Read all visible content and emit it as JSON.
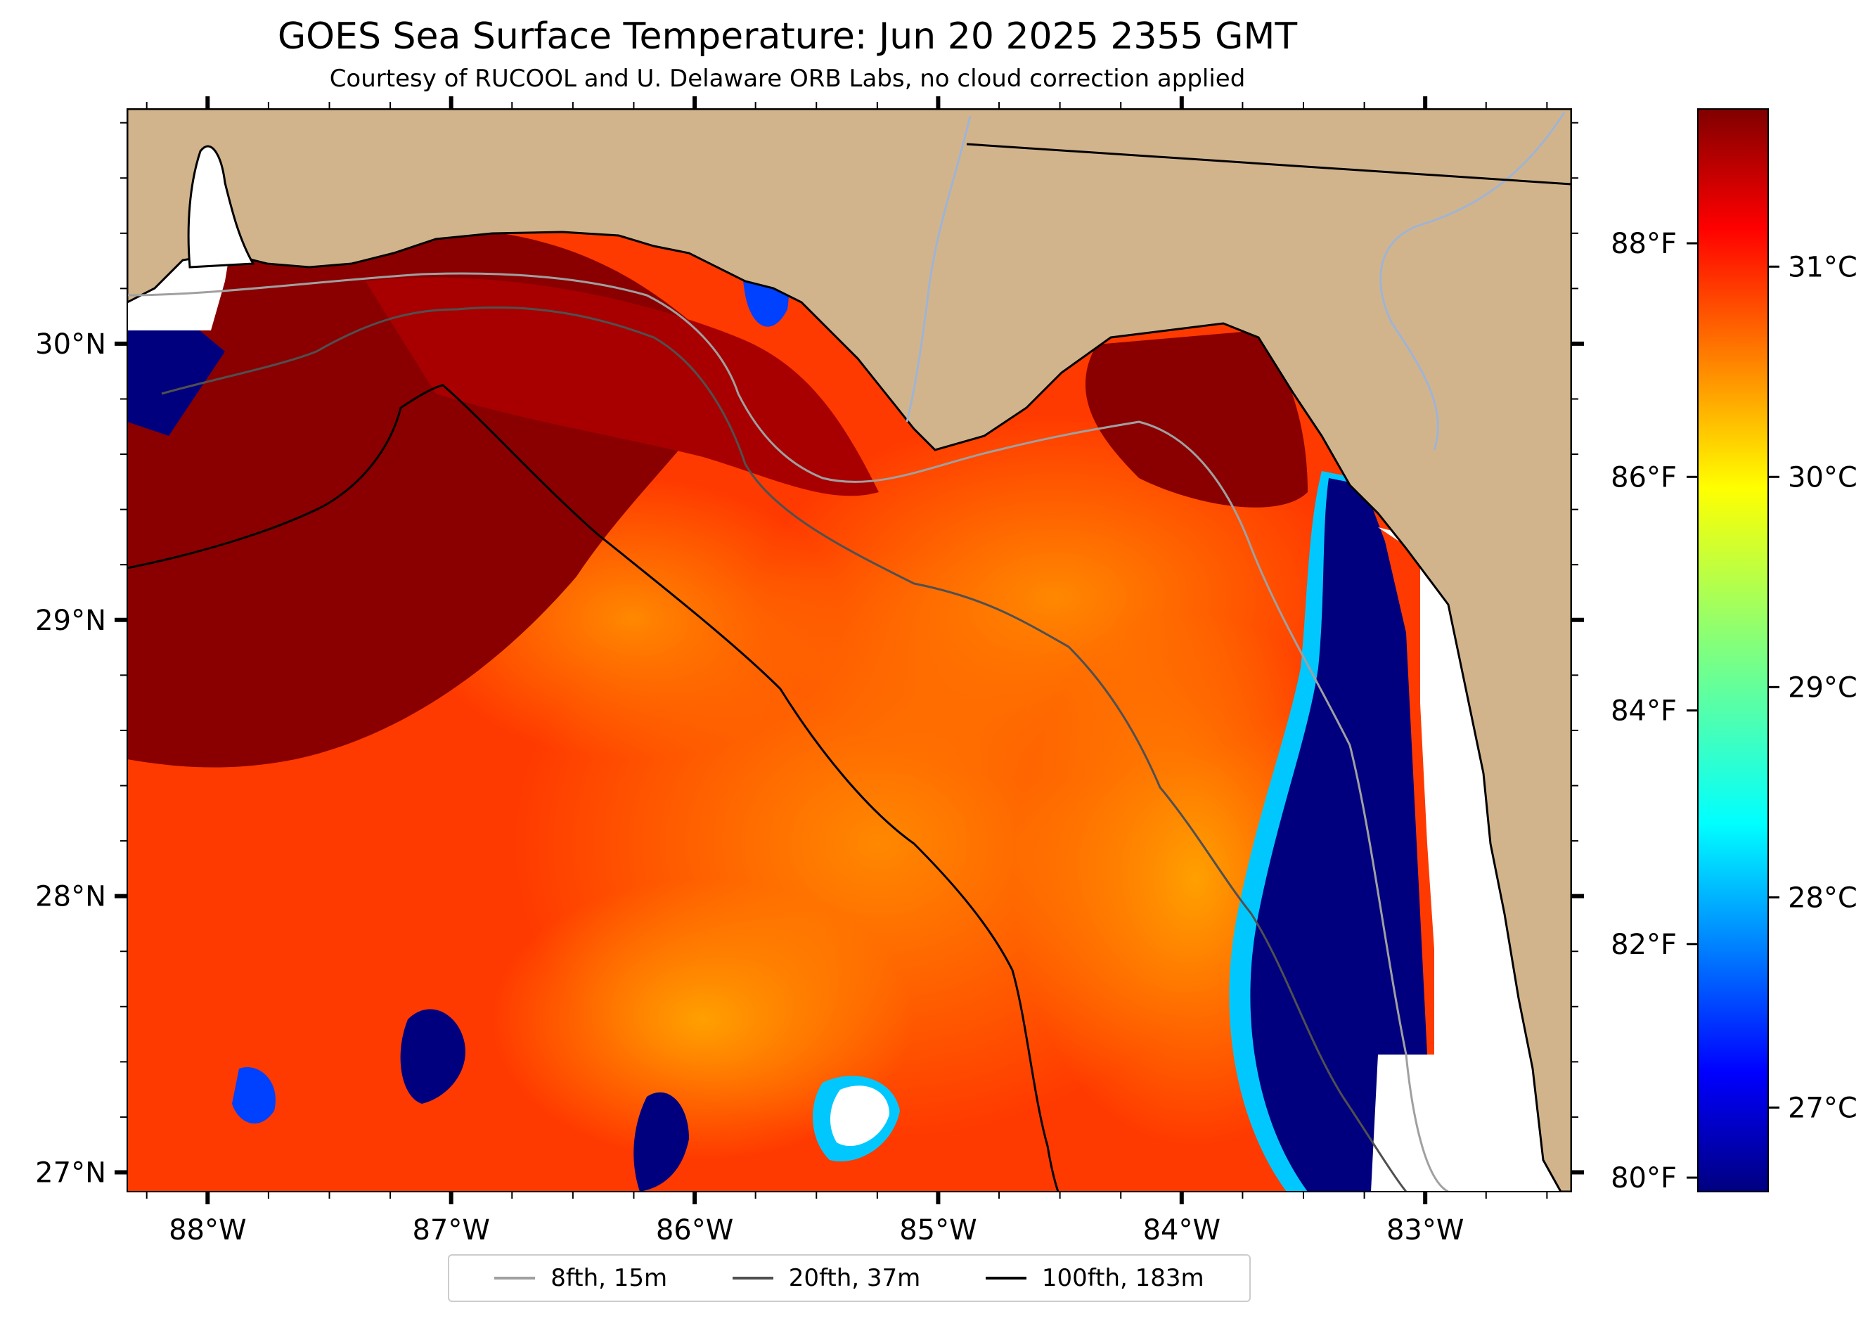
{
  "title": "GOES Sea Surface Temperature: Jun 20 2025 2355 GMT",
  "subtitle": "Courtesy of RUCOOL and U. Delaware ORB Labs, no cloud correction applied",
  "map": {
    "longitude_ticks": [
      {
        "value": -88,
        "label": "88°W"
      },
      {
        "value": -87,
        "label": "87°W"
      },
      {
        "value": -86,
        "label": "86°W"
      },
      {
        "value": -85,
        "label": "85°W"
      },
      {
        "value": -84,
        "label": "84°W"
      },
      {
        "value": -83,
        "label": "83°W"
      }
    ],
    "latitude_ticks": [
      {
        "value": 30,
        "label": "30°N"
      },
      {
        "value": 29,
        "label": "29°N"
      },
      {
        "value": 28,
        "label": "28°N"
      },
      {
        "value": 27,
        "label": "27°N"
      }
    ],
    "colors": {
      "land": "#d2b48c",
      "no_data": "#ffffff",
      "coast": "#000000",
      "river": "#9fb4d4"
    }
  },
  "colorbar": {
    "colormap": "jet",
    "celsius_ticks": [
      {
        "value": 27,
        "label": "27°C"
      },
      {
        "value": 28,
        "label": "28°C"
      },
      {
        "value": 29,
        "label": "29°C"
      },
      {
        "value": 30,
        "label": "30°C"
      },
      {
        "value": 31,
        "label": "31°C"
      }
    ],
    "fahrenheit_ticks": [
      {
        "value": 80,
        "label": "80°F"
      },
      {
        "value": 82,
        "label": "82°F"
      },
      {
        "value": 84,
        "label": "84°F"
      },
      {
        "value": 86,
        "label": "86°F"
      },
      {
        "value": 88,
        "label": "88°F"
      }
    ]
  },
  "legend": {
    "items": [
      {
        "label": "8fth, 15m",
        "color": "#a0a0a0"
      },
      {
        "label": "20fth, 37m",
        "color": "#505050"
      },
      {
        "label": "100fth, 183m",
        "color": "#000000"
      }
    ]
  }
}
